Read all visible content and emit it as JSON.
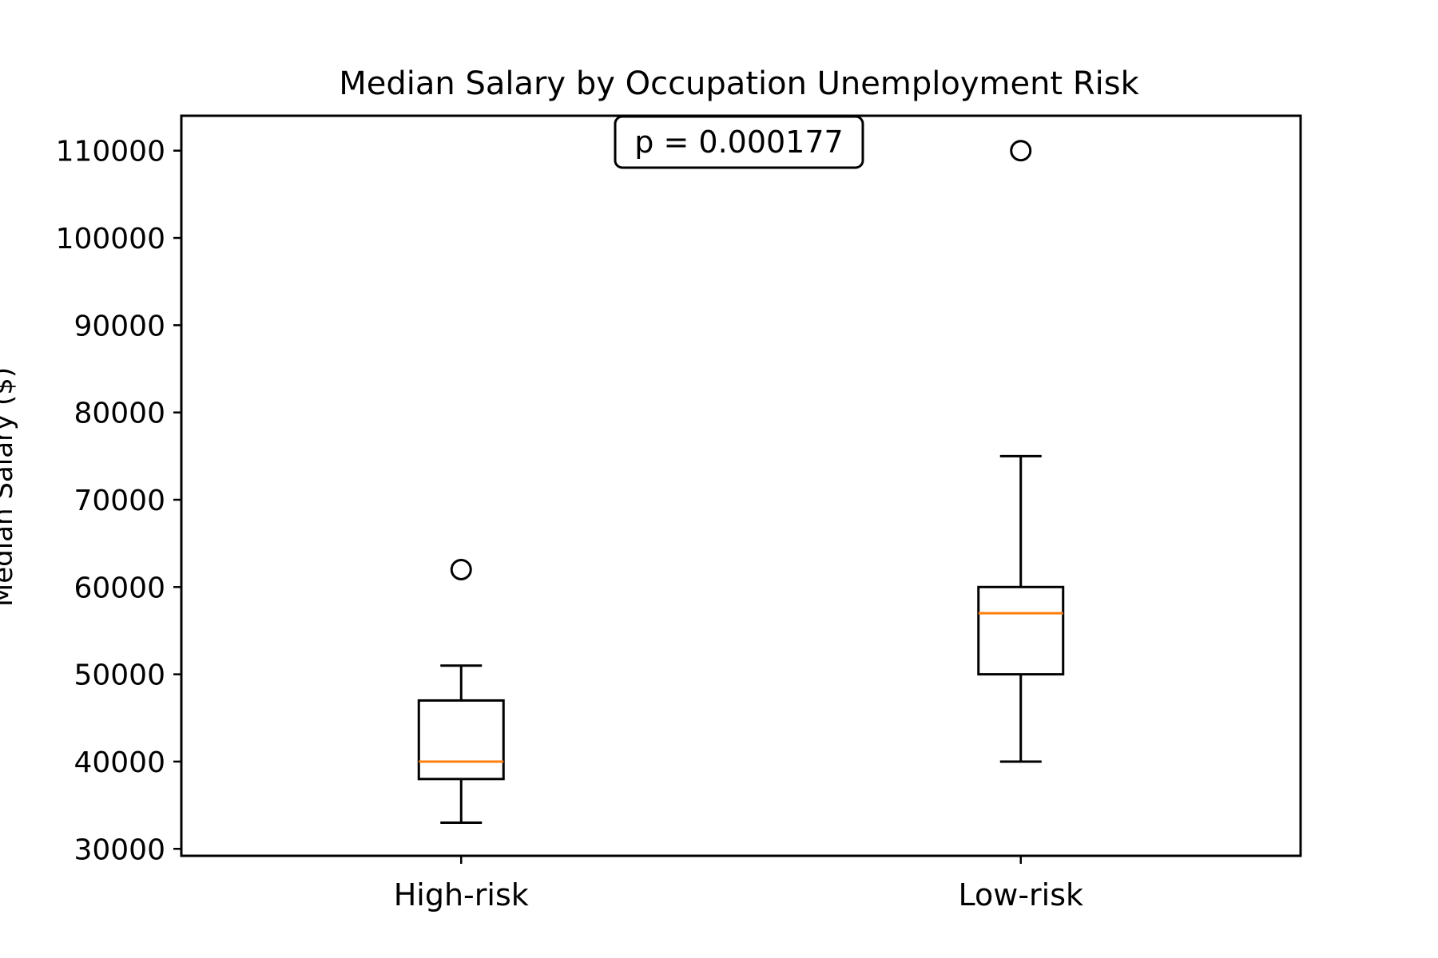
{
  "chart_data": {
    "type": "box",
    "title": "Median Salary by Occupation Unemployment Risk",
    "xlabel": "",
    "ylabel": "Median Salary ($)",
    "ylim": [
      29200,
      114000
    ],
    "yticks": [
      30000,
      40000,
      50000,
      60000,
      70000,
      80000,
      90000,
      100000,
      110000
    ],
    "categories": [
      "High-risk",
      "Low-risk"
    ],
    "boxes": [
      {
        "category": "High-risk",
        "whisker_low": 33000,
        "q1": 38000,
        "median": 40000,
        "q3": 47000,
        "whisker_high": 51000,
        "outliers": [
          62000
        ]
      },
      {
        "category": "Low-risk",
        "whisker_low": 40000,
        "q1": 50000,
        "median": 57000,
        "q3": 60000,
        "whisker_high": 75000,
        "outliers": [
          110000
        ]
      }
    ],
    "annotation": "p = 0.000177",
    "grid": false,
    "colors": {
      "box": "#000000",
      "median": "#ff7f0e",
      "outlier": "#000000"
    }
  }
}
